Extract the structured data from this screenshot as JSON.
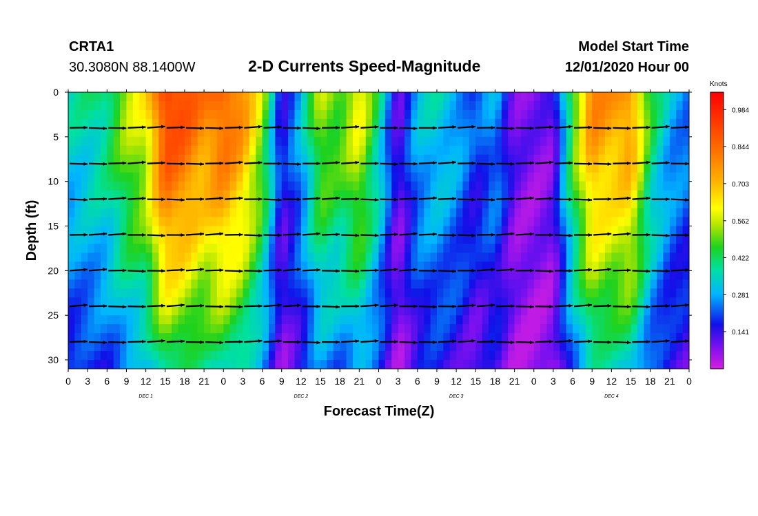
{
  "header": {
    "station": "CRTA1",
    "coords": "30.3080N 88.1400W",
    "title": "2-D Currents Speed-Magnitude",
    "start_label": "Model Start Time",
    "start_value": "12/01/2020 Hour 00"
  },
  "chart_data": {
    "type": "heatmap",
    "title": "2-D Currents Speed-Magnitude",
    "xlabel": "Forecast Time(Z)",
    "ylabel": "Depth (ft)",
    "x_range_hours": [
      0,
      96
    ],
    "y_range": [
      0,
      31
    ],
    "y_inverted": true,
    "x_tick_labels": [
      "0",
      "3",
      "6",
      "9",
      "12",
      "15",
      "18",
      "21",
      "0",
      "3",
      "6",
      "9",
      "12",
      "15",
      "18",
      "21",
      "0",
      "3",
      "6",
      "9",
      "12",
      "15",
      "18",
      "21",
      "0",
      "3",
      "6",
      "9",
      "12",
      "15",
      "18",
      "21",
      "0"
    ],
    "y_ticks": [
      0,
      5,
      10,
      15,
      20,
      25,
      30
    ],
    "day_labels": [
      {
        "label": "DEC 1",
        "hour": 12
      },
      {
        "label": "DEC 2",
        "hour": 36
      },
      {
        "label": "DEC 3",
        "hour": 60
      },
      {
        "label": "DEC 4",
        "hour": 84
      }
    ],
    "colorbar": {
      "unit": "Knots",
      "ticks": [
        "0.984",
        "0.844",
        "0.703",
        "0.562",
        "0.422",
        "0.281",
        "0.141"
      ],
      "range": [
        0,
        1.05
      ]
    },
    "speed_profile_hours": [
      0,
      3,
      6,
      9,
      12,
      15,
      18,
      21,
      24,
      27,
      30,
      33,
      36,
      39,
      42,
      45,
      48,
      51,
      54,
      57,
      60,
      63,
      66,
      69,
      72,
      75,
      78,
      81,
      84,
      87,
      90,
      93,
      96
    ],
    "surface_speed": [
      0.35,
      0.38,
      0.42,
      0.55,
      0.62,
      0.95,
      0.9,
      0.8,
      0.88,
      0.78,
      0.55,
      0.15,
      0.3,
      0.55,
      0.5,
      0.62,
      0.4,
      0.1,
      0.3,
      0.35,
      0.3,
      0.2,
      0.28,
      0.1,
      0.08,
      0.1,
      0.5,
      0.8,
      0.75,
      0.78,
      0.45,
      0.3,
      0.25
    ],
    "vector_depths_ft": [
      4,
      8,
      12,
      16,
      20,
      24,
      28
    ]
  }
}
